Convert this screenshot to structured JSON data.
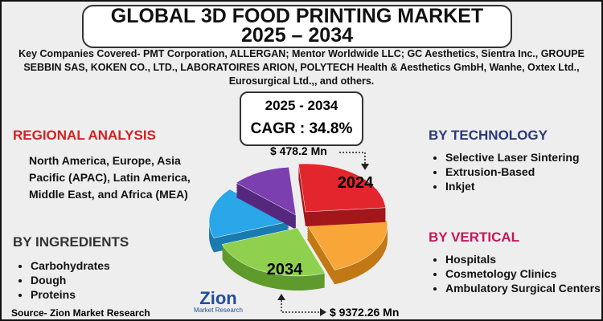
{
  "header": {
    "title_line1": "GLOBAL 3D FOOD PRINTING MARKET",
    "title_line2": "2025 – 2034"
  },
  "companies": "Key Companies Covered- PMT Corporation, ALLERGAN; Mentor Worldwide LLC; GC Aesthetics, Sientra Inc., GROUPE SEBBIN SAS, KOKEN CO., LTD., LABORATOIRES ARION, POLYTECH Health & Aesthetics GmbH, Wanhe, Oxtex Ltd., Eurosurgical Ltd.,, and others.",
  "forecast": {
    "period": "2025 - 2034",
    "cagr": "CAGR : 34.8%"
  },
  "regional": {
    "title": "REGIONAL ANALYSIS",
    "text": "North America, Europe, Asia Pacific (APAC), Latin America, Middle East, and Africa (MEA)"
  },
  "ingredients": {
    "title": "BY INGREDIENTS",
    "items": [
      "Carbohydrates",
      "Dough",
      "Proteins"
    ]
  },
  "technology": {
    "title": "BY TECHNOLOGY",
    "items": [
      "Selective Laser Sintering",
      "Extrusion-Based",
      "Inkjet"
    ]
  },
  "vertical": {
    "title": "BY VERTICAL",
    "items": [
      "Hospitals",
      "Cosmetology Clinics",
      "Ambulatory Surgical Centers"
    ]
  },
  "pie": {
    "start_year": "2024",
    "end_year": "2034",
    "start_value": "$ 478.2 Mn",
    "end_value": "$ 9372.26 Mn"
  },
  "logo": {
    "name": "Zion",
    "tagline": "Market Research"
  },
  "source": "Source- Zion Market Research"
}
